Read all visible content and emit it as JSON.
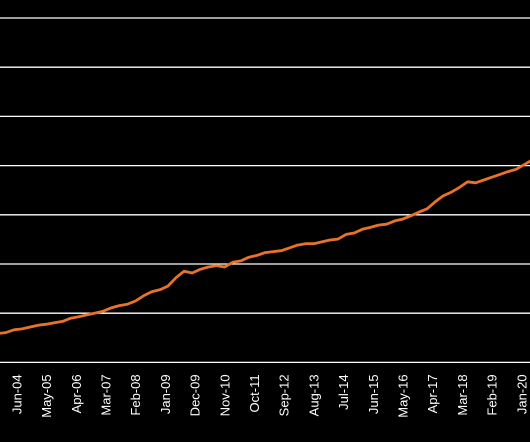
{
  "chart_data": {
    "type": "line",
    "title": "",
    "xlabel": "",
    "ylabel": "",
    "x_tick_labels": [
      "Jun-04",
      "May-05",
      "Apr-06",
      "Mar-07",
      "Feb-08",
      "Jan-09",
      "Dec-09",
      "Nov-10",
      "Oct-11",
      "Sep-12",
      "Aug-13",
      "Jul-14",
      "Jun-15",
      "May-16",
      "Apr-17",
      "Mar-18",
      "Feb-19",
      "Jan-20"
    ],
    "gridline_count": 8,
    "ylim": [
      0,
      7.4
    ],
    "grid": true,
    "legend": "none",
    "series": [
      {
        "color": "#e8722a",
        "points": [
          [
            "2003-12",
            0.62
          ],
          [
            "2004-03",
            0.64
          ],
          [
            "2004-06",
            0.7
          ],
          [
            "2004-09",
            0.72
          ],
          [
            "2004-12",
            0.76
          ],
          [
            "2005-03",
            0.8
          ],
          [
            "2005-06",
            0.82
          ],
          [
            "2005-09",
            0.85
          ],
          [
            "2005-12",
            0.88
          ],
          [
            "2006-03",
            0.95
          ],
          [
            "2006-06",
            0.98
          ],
          [
            "2006-09",
            1.02
          ],
          [
            "2006-12",
            1.06
          ],
          [
            "2007-03",
            1.1
          ],
          [
            "2007-06",
            1.17
          ],
          [
            "2007-09",
            1.22
          ],
          [
            "2007-12",
            1.25
          ],
          [
            "2008-03",
            1.32
          ],
          [
            "2008-06",
            1.43
          ],
          [
            "2008-09",
            1.52
          ],
          [
            "2008-12",
            1.56
          ],
          [
            "2009-03",
            1.64
          ],
          [
            "2009-06",
            1.82
          ],
          [
            "2009-09",
            1.96
          ],
          [
            "2009-12",
            1.92
          ],
          [
            "2010-03",
            2.0
          ],
          [
            "2010-06",
            2.05
          ],
          [
            "2010-09",
            2.08
          ],
          [
            "2010-12",
            2.05
          ],
          [
            "2011-03",
            2.15
          ],
          [
            "2011-06",
            2.18
          ],
          [
            "2011-09",
            2.26
          ],
          [
            "2011-12",
            2.3
          ],
          [
            "2012-03",
            2.36
          ],
          [
            "2012-06",
            2.38
          ],
          [
            "2012-09",
            2.4
          ],
          [
            "2012-12",
            2.46
          ],
          [
            "2013-03",
            2.52
          ],
          [
            "2013-06",
            2.55
          ],
          [
            "2013-09",
            2.55
          ],
          [
            "2013-12",
            2.59
          ],
          [
            "2014-03",
            2.63
          ],
          [
            "2014-06",
            2.65
          ],
          [
            "2014-09",
            2.75
          ],
          [
            "2014-12",
            2.78
          ],
          [
            "2015-03",
            2.86
          ],
          [
            "2015-06",
            2.9
          ],
          [
            "2015-09",
            2.95
          ],
          [
            "2015-12",
            2.97
          ],
          [
            "2016-03",
            3.04
          ],
          [
            "2016-06",
            3.08
          ],
          [
            "2016-09",
            3.15
          ],
          [
            "2016-12",
            3.23
          ],
          [
            "2017-03",
            3.3
          ],
          [
            "2017-06",
            3.45
          ],
          [
            "2017-09",
            3.58
          ],
          [
            "2017-12",
            3.66
          ],
          [
            "2018-03",
            3.76
          ],
          [
            "2018-06",
            3.88
          ],
          [
            "2018-09",
            3.86
          ],
          [
            "2018-12",
            3.92
          ],
          [
            "2019-03",
            3.98
          ],
          [
            "2019-06",
            4.04
          ],
          [
            "2019-09",
            4.1
          ],
          [
            "2019-12",
            4.15
          ],
          [
            "2020-03",
            4.25
          ],
          [
            "2020-06",
            4.35
          ]
        ]
      }
    ]
  }
}
